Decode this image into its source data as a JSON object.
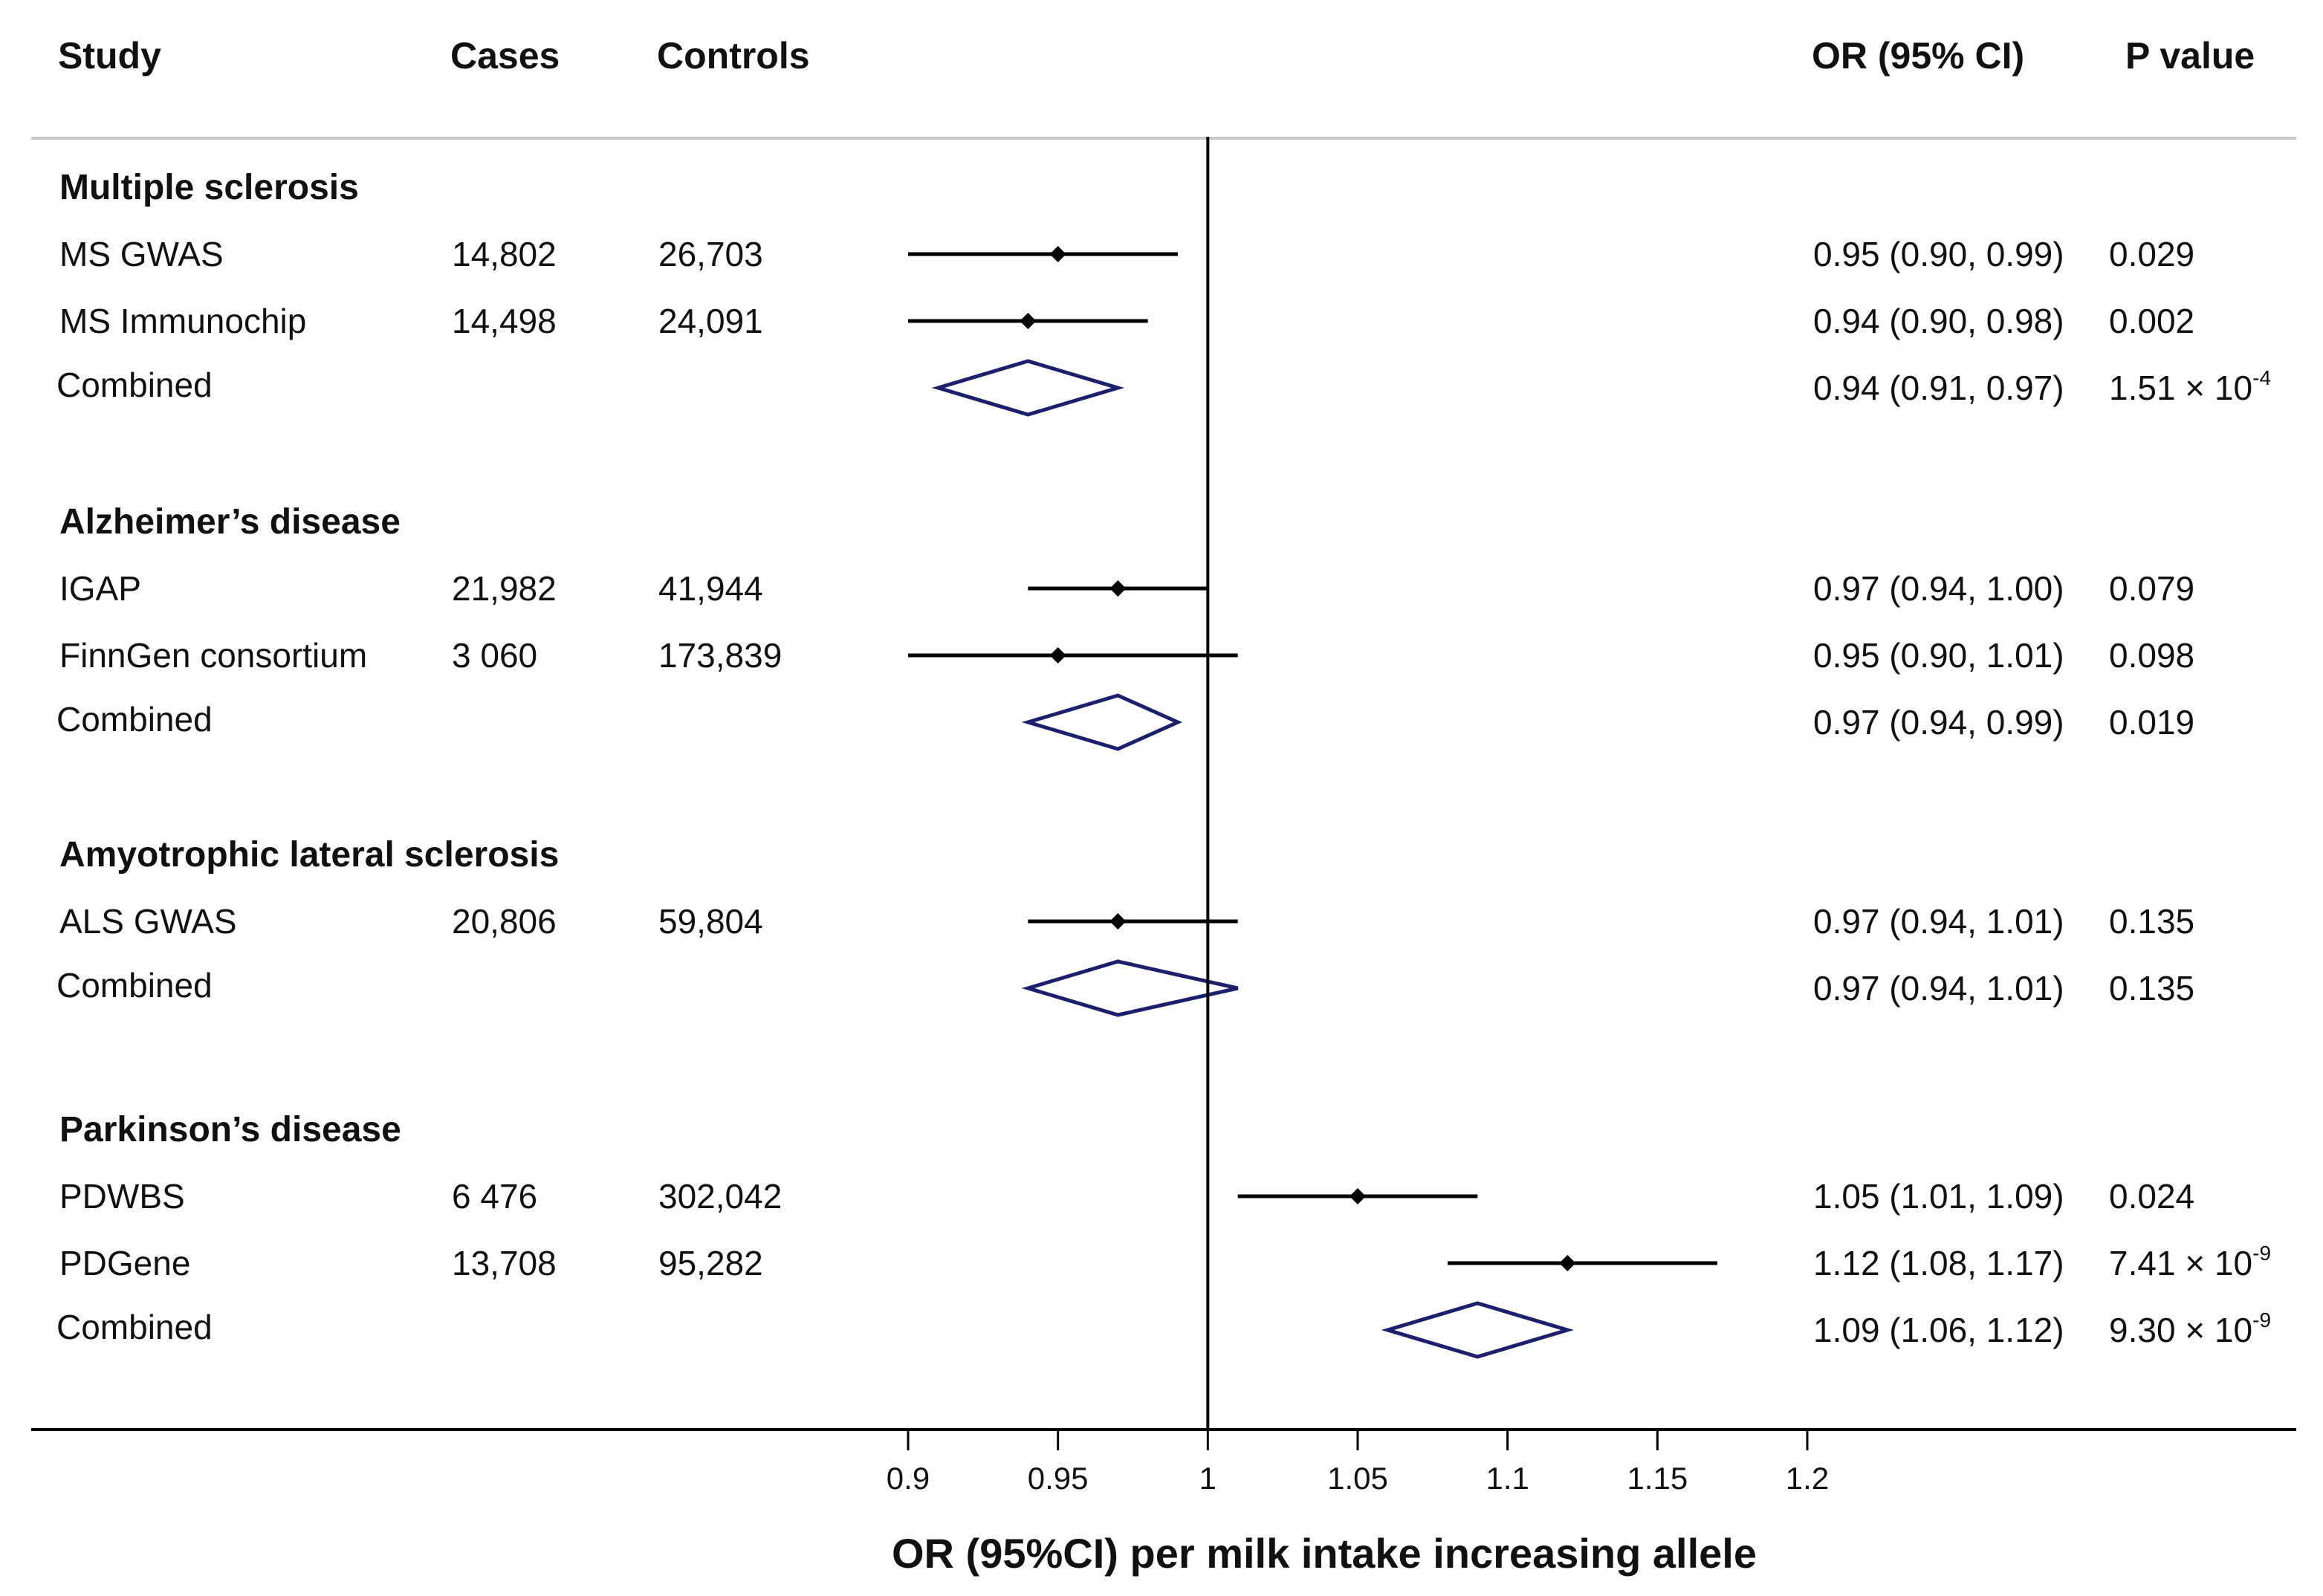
{
  "headers": {
    "study": "Study",
    "cases": "Cases",
    "controls": "Controls",
    "or": "OR (95% CI)",
    "pvalue": "P value"
  },
  "colors": {
    "point": "#000000",
    "diamond": "#1c1f6b",
    "axis": "#000000",
    "header_rule": "#c8c8c8"
  },
  "chart_data": {
    "type": "forest",
    "xlabel": "OR (95%CI) per milk intake increasing allele",
    "xlim": [
      0.9,
      1.2
    ],
    "xticks": [
      "0.9",
      "0.95",
      "1",
      "1.05",
      "1.1",
      "1.15",
      "1.2"
    ],
    "reference_line": 1,
    "groups": [
      {
        "name": "Multiple sclerosis",
        "studies": [
          {
            "name": "MS GWAS",
            "cases": "14,802",
            "controls": "26,703",
            "or": 0.95,
            "lo": 0.9,
            "hi": 0.99,
            "or_text": "0.95 (0.90, 0.99)",
            "p_text": "0.029",
            "p_exp": ""
          },
          {
            "name": "MS Immunochip",
            "cases": "14,498",
            "controls": "24,091",
            "or": 0.94,
            "lo": 0.9,
            "hi": 0.98,
            "or_text": "0.94 (0.90, 0.98)",
            "p_text": "0.002",
            "p_exp": ""
          }
        ],
        "combined": {
          "label": "Combined",
          "or": 0.94,
          "lo": 0.91,
          "hi": 0.97,
          "or_text": "0.94 (0.91, 0.97)",
          "p_text": "1.51 × 10",
          "p_exp": "-4"
        }
      },
      {
        "name": "Alzheimer’s disease",
        "studies": [
          {
            "name": "IGAP",
            "cases": "21,982",
            "controls": "41,944",
            "or": 0.97,
            "lo": 0.94,
            "hi": 1.0,
            "or_text": "0.97 (0.94, 1.00)",
            "p_text": "0.079",
            "p_exp": ""
          },
          {
            "name": "FinnGen consortium",
            "cases": "3 060",
            "controls": "173,839",
            "or": 0.95,
            "lo": 0.9,
            "hi": 1.01,
            "or_text": "0.95 (0.90, 1.01)",
            "p_text": "0.098",
            "p_exp": ""
          }
        ],
        "combined": {
          "label": "Combined",
          "or": 0.97,
          "lo": 0.94,
          "hi": 0.99,
          "or_text": "0.97 (0.94, 0.99)",
          "p_text": "0.019",
          "p_exp": ""
        }
      },
      {
        "name": "Amyotrophic lateral sclerosis",
        "studies": [
          {
            "name": "ALS GWAS",
            "cases": "20,806",
            "controls": "59,804",
            "or": 0.97,
            "lo": 0.94,
            "hi": 1.01,
            "or_text": "0.97 (0.94, 1.01)",
            "p_text": "0.135",
            "p_exp": ""
          }
        ],
        "combined": {
          "label": "Combined",
          "or": 0.97,
          "lo": 0.94,
          "hi": 1.01,
          "or_text": "0.97 (0.94, 1.01)",
          "p_text": "0.135",
          "p_exp": ""
        }
      },
      {
        "name": "Parkinson’s disease",
        "studies": [
          {
            "name": "PDWBS",
            "cases": "6 476",
            "controls": "302,042",
            "or": 1.05,
            "lo": 1.01,
            "hi": 1.09,
            "or_text": "1.05 (1.01, 1.09)",
            "p_text": "0.024",
            "p_exp": ""
          },
          {
            "name": "PDGene",
            "cases": "13,708",
            "controls": "95,282",
            "or": 1.12,
            "lo": 1.08,
            "hi": 1.17,
            "or_text": "1.12 (1.08, 1.17)",
            "p_text": "7.41 × 10",
            "p_exp": "-9"
          }
        ],
        "combined": {
          "label": "Combined",
          "or": 1.09,
          "lo": 1.06,
          "hi": 1.12,
          "or_text": "1.09 (1.06, 1.12)",
          "p_text": "9.30 × 10",
          "p_exp": "-9"
        }
      }
    ]
  }
}
